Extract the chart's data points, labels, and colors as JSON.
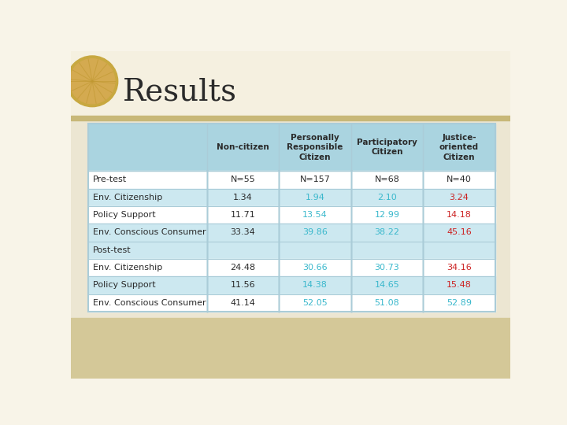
{
  "title": "Results",
  "title_fontsize": 28,
  "title_color": "#2a2a2a",
  "bg_top_color": "#f8f4e8",
  "bg_bottom_color": "#c8b878",
  "header_bg_color": "#aad4e0",
  "header_text_color": "#2a2a2a",
  "col_headers": [
    "Non-citizen",
    "Personally\nResponsible\nCitizen",
    "Participatory\nCitizen",
    "Justice-\noriented\nCitizen"
  ],
  "row_labels": [
    "Pre-test",
    "Env. Citizenship",
    "Policy Support",
    "Env. Conscious Consumer",
    "Post-test",
    "Env. Citizenship",
    "Policy Support",
    "Env. Conscious Consumer"
  ],
  "data": [
    [
      "N=55",
      "N=157",
      "N=68",
      "N=40"
    ],
    [
      "1.34",
      "1.94",
      "2.10",
      "3.24"
    ],
    [
      "11.71",
      "13.54",
      "12.99",
      "14.18"
    ],
    [
      "33.34",
      "39.86",
      "38.22",
      "45.16"
    ],
    [
      "",
      "",
      "",
      ""
    ],
    [
      "24.48",
      "30.66",
      "30.73",
      "34.16"
    ],
    [
      "11.56",
      "14.38",
      "14.65",
      "15.48"
    ],
    [
      "41.14",
      "52.05",
      "51.08",
      "52.89"
    ]
  ],
  "cell_colors": [
    [
      "#2a2a2a",
      "#2a2a2a",
      "#2a2a2a",
      "#2a2a2a"
    ],
    [
      "#2a2a2a",
      "#3ab8cc",
      "#3ab8cc",
      "#cc2222"
    ],
    [
      "#2a2a2a",
      "#3ab8cc",
      "#3ab8cc",
      "#cc2222"
    ],
    [
      "#2a2a2a",
      "#3ab8cc",
      "#3ab8cc",
      "#cc2222"
    ],
    [
      "#2a2a2a",
      "#2a2a2a",
      "#2a2a2a",
      "#2a2a2a"
    ],
    [
      "#2a2a2a",
      "#3ab8cc",
      "#3ab8cc",
      "#cc2222"
    ],
    [
      "#2a2a2a",
      "#3ab8cc",
      "#3ab8cc",
      "#cc2222"
    ],
    [
      "#2a2a2a",
      "#3ab8cc",
      "#3ab8cc",
      "#3ab8cc"
    ]
  ],
  "row_bold": [
    false,
    false,
    false,
    false,
    false,
    false,
    false,
    false
  ],
  "row_colors": [
    "#ffffff",
    "#cce8f0",
    "#ffffff",
    "#cce8f0",
    "#cce8f0",
    "#ffffff",
    "#cce8f0",
    "#ffffff"
  ],
  "label_color": "#2a2a2a",
  "divider_color": "#aaccd8",
  "table_border_color": "#aaccd8"
}
